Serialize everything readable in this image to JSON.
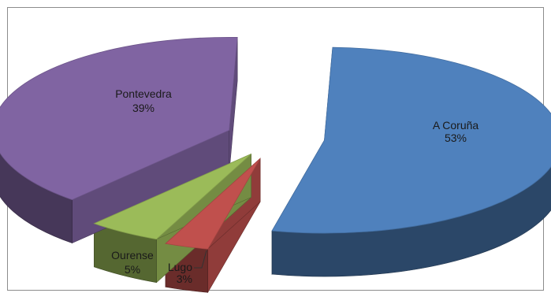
{
  "chart_data": {
    "type": "pie",
    "style": "3d-exploded",
    "title": "",
    "legend": "none",
    "slices": [
      {
        "name": "A Coruña",
        "value": 53,
        "label": "53%",
        "color": "#4f81bd"
      },
      {
        "name": "Lugo",
        "value": 3,
        "label": "3%",
        "color": "#c0504d"
      },
      {
        "name": "Ourense",
        "value": 5,
        "label": "5%",
        "color": "#9bbb59"
      },
      {
        "name": "Pontevedra",
        "value": 39,
        "label": "39%",
        "color": "#8064a2"
      }
    ]
  }
}
